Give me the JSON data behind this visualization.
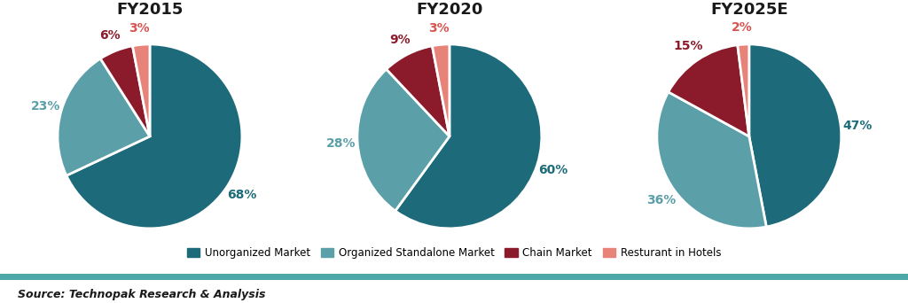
{
  "charts": [
    {
      "title": "FY2015",
      "values": [
        68,
        23,
        6,
        3
      ],
      "labels": [
        "68%",
        "23%",
        "6%",
        "3%"
      ],
      "label_colors": [
        "#1d6b7a",
        "#5b9fa8",
        "#8b1a2a",
        "#d9534f"
      ]
    },
    {
      "title": "FY2020",
      "values": [
        60,
        28,
        9,
        3
      ],
      "labels": [
        "60%",
        "28%",
        "9%",
        "3%"
      ],
      "label_colors": [
        "#1d6b7a",
        "#5b9fa8",
        "#8b1a2a",
        "#d9534f"
      ]
    },
    {
      "title": "FY2025E",
      "values": [
        47,
        36,
        15,
        2
      ],
      "labels": [
        "47%",
        "36%",
        "15%",
        "2%"
      ],
      "label_colors": [
        "#1d6b7a",
        "#5b9fa8",
        "#8b1a2a",
        "#d9534f"
      ]
    }
  ],
  "colors": [
    "#1d6b7a",
    "#5b9fa8",
    "#8b1a2a",
    "#e8837a"
  ],
  "legend_labels": [
    "Unorganized Market",
    "Organized Standalone Market",
    "Chain Market",
    "Resturant in Hotels"
  ],
  "source_text": "Source: Technopak Research & Analysis",
  "title_fontsize": 13,
  "label_fontsize": 10,
  "background_color": "#ffffff",
  "separator_color": "#4da8a8",
  "startangle": 90,
  "label_distance": 1.18
}
